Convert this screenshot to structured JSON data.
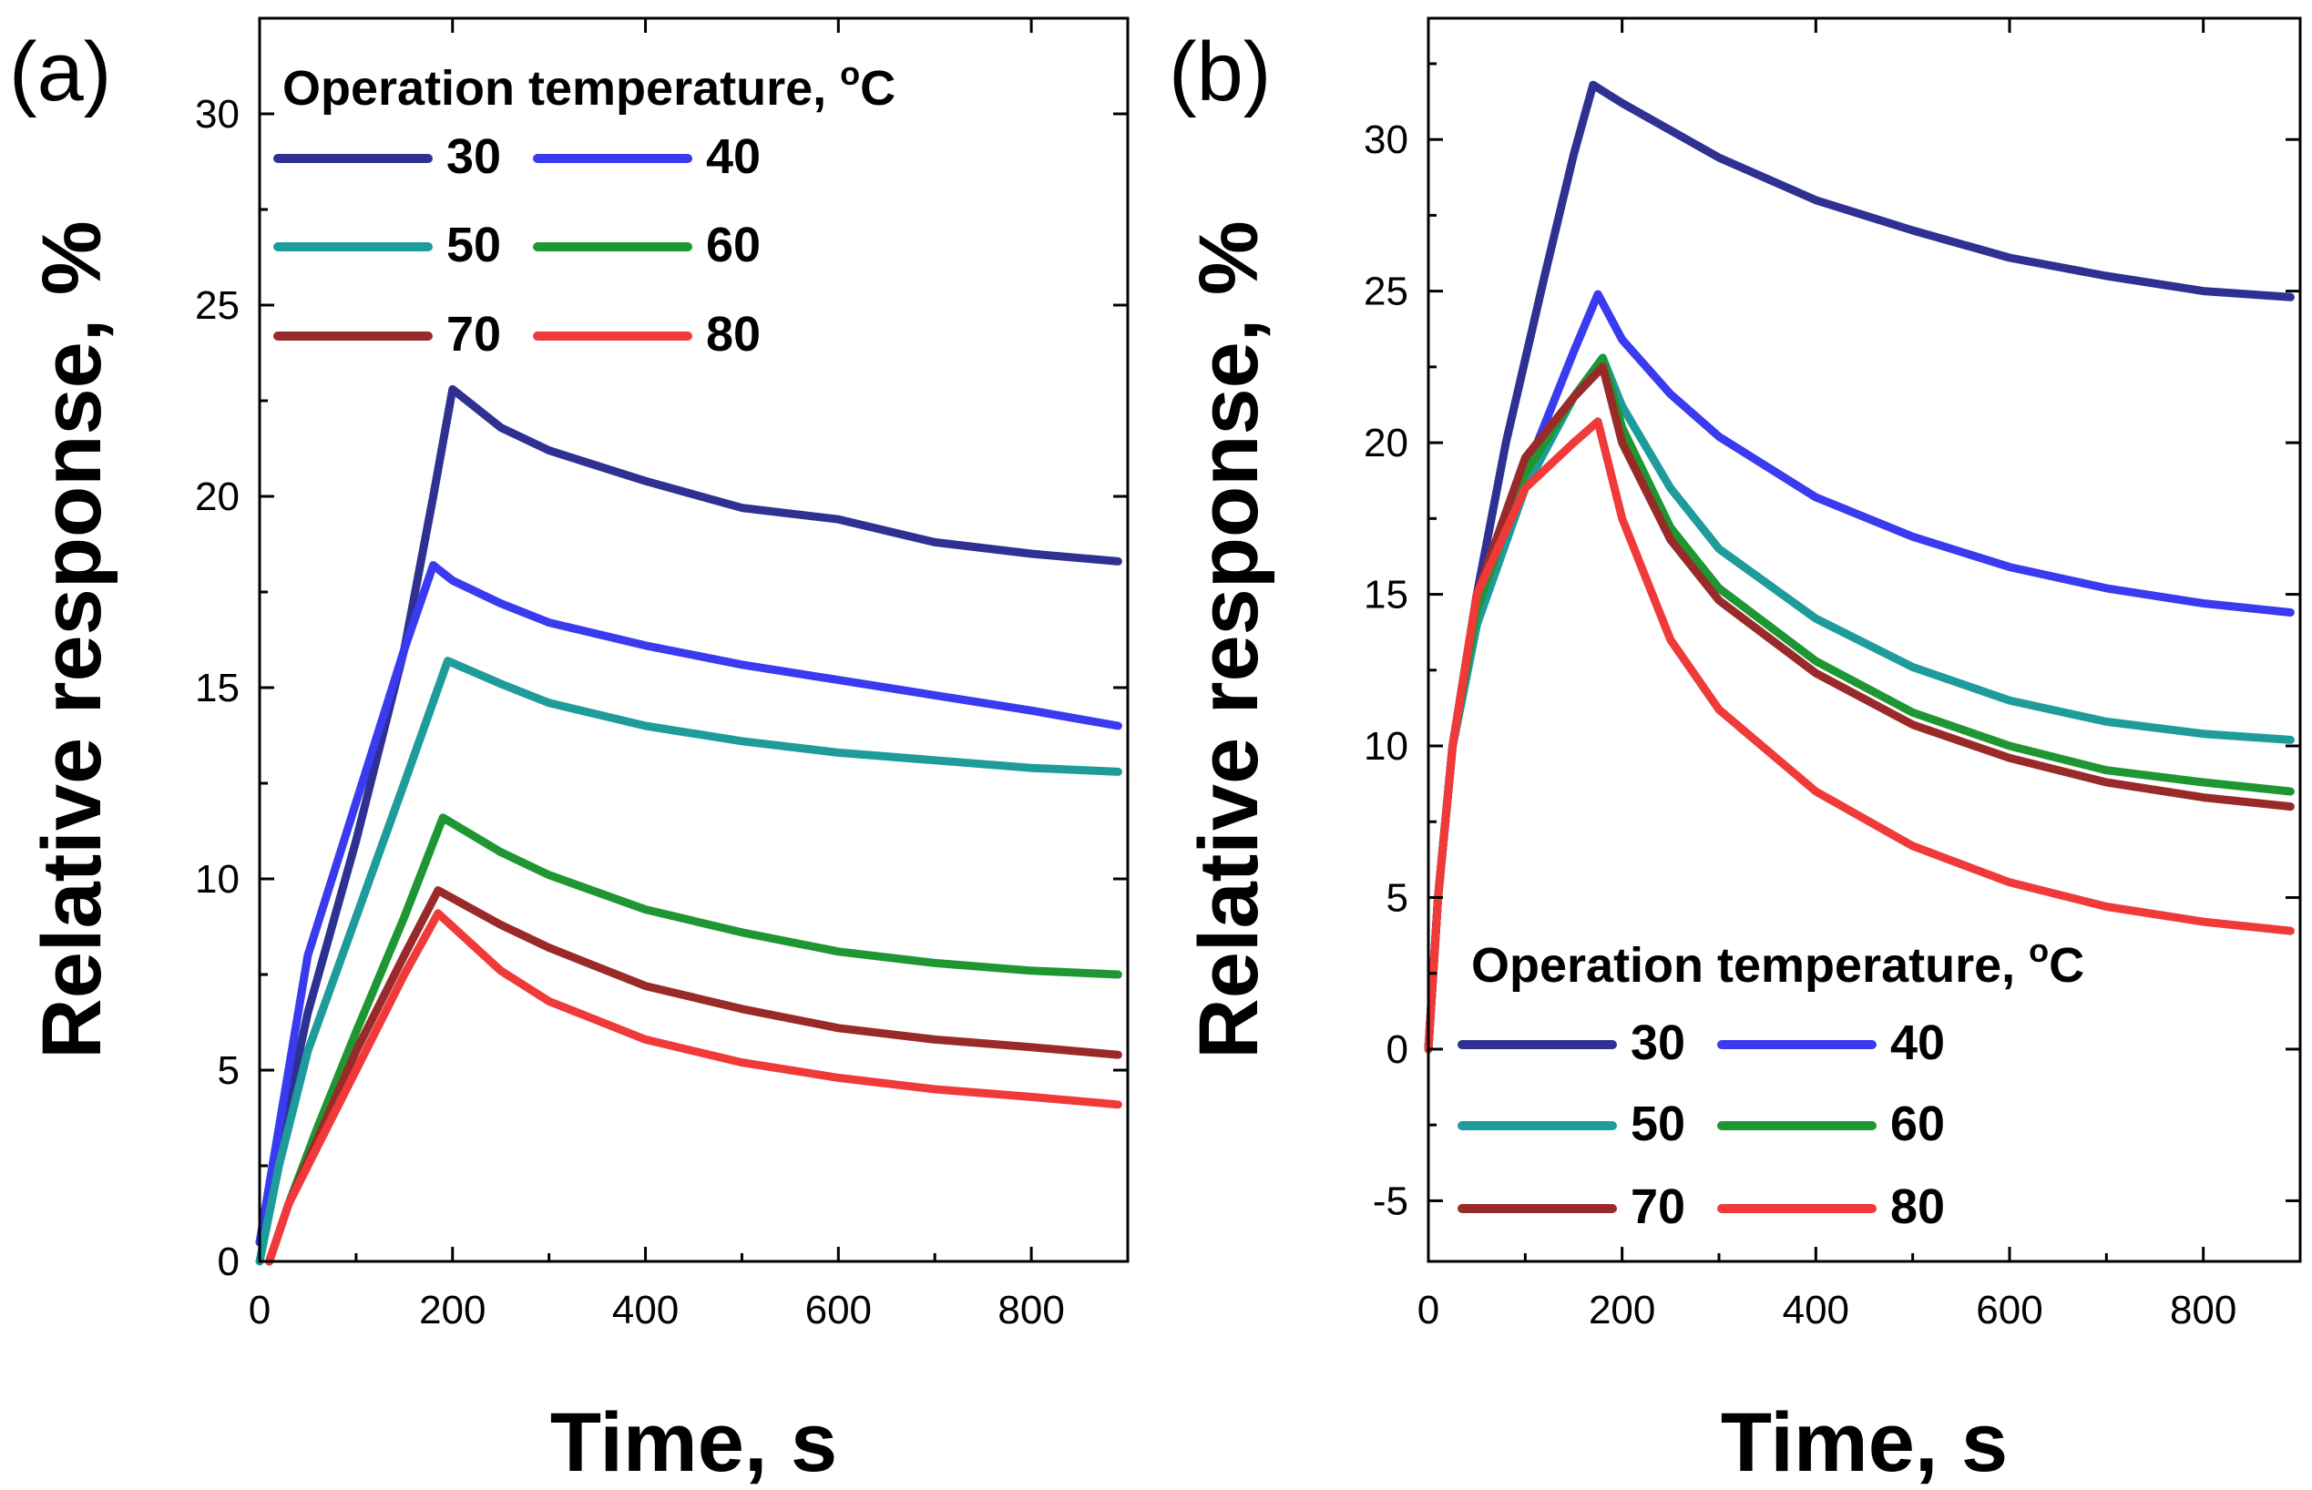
{
  "chart_data": [
    {
      "type": "line",
      "panel_label": "(a)",
      "xlabel": "Time, s",
      "ylabel": "Relative response, %",
      "xlim": [
        0,
        900
      ],
      "ylim": [
        0,
        32.5
      ],
      "xticks": [
        0,
        200,
        400,
        600,
        800
      ],
      "xtick_labels": [
        "0",
        "200",
        "400",
        "600",
        "800"
      ],
      "yticks": [
        0,
        5,
        10,
        15,
        20,
        25,
        30
      ],
      "ytick_labels": [
        "0",
        "5",
        "10",
        "15",
        "20",
        "25",
        "30"
      ],
      "legend": {
        "title": "Operation temperature,",
        "title_unit_super": "o",
        "title_unit": "C",
        "placement": "top-left"
      },
      "series": [
        {
          "name": "30",
          "color": "#2e3192",
          "points": [
            [
              0,
              0.5
            ],
            [
              20,
              3
            ],
            [
              50,
              6.5
            ],
            [
              100,
              11
            ],
            [
              150,
              16
            ],
            [
              180,
              20
            ],
            [
              200,
              22.8
            ],
            [
              250,
              21.8
            ],
            [
              300,
              21.2
            ],
            [
              400,
              20.4
            ],
            [
              500,
              19.7
            ],
            [
              600,
              19.4
            ],
            [
              700,
              18.8
            ],
            [
              800,
              18.5
            ],
            [
              890,
              18.3
            ]
          ]
        },
        {
          "name": "40",
          "color": "#3a3af0",
          "points": [
            [
              0,
              0.5
            ],
            [
              20,
              3.5
            ],
            [
              50,
              8
            ],
            [
              100,
              12
            ],
            [
              150,
              16
            ],
            [
              180,
              18.2
            ],
            [
              200,
              17.8
            ],
            [
              250,
              17.2
            ],
            [
              300,
              16.7
            ],
            [
              400,
              16.1
            ],
            [
              500,
              15.6
            ],
            [
              600,
              15.2
            ],
            [
              700,
              14.8
            ],
            [
              800,
              14.4
            ],
            [
              890,
              14
            ]
          ]
        },
        {
          "name": "50",
          "color": "#1e9b9b",
          "points": [
            [
              0,
              0
            ],
            [
              20,
              2.5
            ],
            [
              50,
              5.5
            ],
            [
              100,
              9
            ],
            [
              150,
              12.5
            ],
            [
              195,
              15.7
            ],
            [
              250,
              15.1
            ],
            [
              300,
              14.6
            ],
            [
              400,
              14
            ],
            [
              500,
              13.6
            ],
            [
              600,
              13.3
            ],
            [
              700,
              13.1
            ],
            [
              800,
              12.9
            ],
            [
              890,
              12.8
            ]
          ]
        },
        {
          "name": "60",
          "color": "#1e9632",
          "points": [
            [
              10,
              0
            ],
            [
              30,
              1.5
            ],
            [
              60,
              3.5
            ],
            [
              100,
              6
            ],
            [
              150,
              9
            ],
            [
              190,
              11.6
            ],
            [
              250,
              10.7
            ],
            [
              300,
              10.1
            ],
            [
              400,
              9.2
            ],
            [
              500,
              8.6
            ],
            [
              600,
              8.1
            ],
            [
              700,
              7.8
            ],
            [
              800,
              7.6
            ],
            [
              890,
              7.5
            ]
          ]
        },
        {
          "name": "70",
          "color": "#9a2a2a",
          "points": [
            [
              10,
              0
            ],
            [
              30,
              1.5
            ],
            [
              60,
              3.2
            ],
            [
              100,
              5.5
            ],
            [
              150,
              8
            ],
            [
              185,
              9.7
            ],
            [
              250,
              8.8
            ],
            [
              300,
              8.2
            ],
            [
              400,
              7.2
            ],
            [
              500,
              6.6
            ],
            [
              600,
              6.1
            ],
            [
              700,
              5.8
            ],
            [
              800,
              5.6
            ],
            [
              890,
              5.4
            ]
          ]
        },
        {
          "name": "80",
          "color": "#f03a3a",
          "points": [
            [
              10,
              0
            ],
            [
              30,
              1.5
            ],
            [
              60,
              3
            ],
            [
              100,
              5
            ],
            [
              150,
              7.5
            ],
            [
              185,
              9.1
            ],
            [
              250,
              7.6
            ],
            [
              300,
              6.8
            ],
            [
              400,
              5.8
            ],
            [
              500,
              5.2
            ],
            [
              600,
              4.8
            ],
            [
              700,
              4.5
            ],
            [
              800,
              4.3
            ],
            [
              890,
              4.1
            ]
          ]
        }
      ]
    },
    {
      "type": "line",
      "panel_label": "(b)",
      "xlabel": "Time, s",
      "ylabel": "Relative response, %",
      "xlim": [
        0,
        900
      ],
      "ylim": [
        -7,
        34
      ],
      "xticks": [
        0,
        200,
        400,
        600,
        800
      ],
      "xtick_labels": [
        "0",
        "200",
        "400",
        "600",
        "800"
      ],
      "yticks": [
        -5,
        0,
        5,
        10,
        15,
        20,
        25,
        30
      ],
      "ytick_labels": [
        "-5",
        "0",
        "5",
        "10",
        "15",
        "20",
        "25",
        "30"
      ],
      "legend": {
        "title": "Operation temperature,",
        "title_unit_super": "o",
        "title_unit": "C",
        "placement": "bottom-right"
      },
      "series": [
        {
          "name": "30",
          "color": "#2e3192",
          "points": [
            [
              0,
              0
            ],
            [
              10,
              5
            ],
            [
              25,
              10
            ],
            [
              50,
              15
            ],
            [
              80,
              20
            ],
            [
              120,
              25.5
            ],
            [
              150,
              29.5
            ],
            [
              170,
              31.8
            ],
            [
              200,
              31.2
            ],
            [
              300,
              29.4
            ],
            [
              400,
              28
            ],
            [
              500,
              27
            ],
            [
              600,
              26.1
            ],
            [
              700,
              25.5
            ],
            [
              800,
              25
            ],
            [
              890,
              24.8
            ]
          ]
        },
        {
          "name": "40",
          "color": "#3a3af0",
          "points": [
            [
              0,
              0
            ],
            [
              10,
              5
            ],
            [
              25,
              10
            ],
            [
              50,
              14
            ],
            [
              100,
              19
            ],
            [
              150,
              23
            ],
            [
              175,
              24.9
            ],
            [
              200,
              23.4
            ],
            [
              250,
              21.6
            ],
            [
              300,
              20.2
            ],
            [
              400,
              18.2
            ],
            [
              500,
              16.9
            ],
            [
              600,
              15.9
            ],
            [
              700,
              15.2
            ],
            [
              800,
              14.7
            ],
            [
              890,
              14.4
            ]
          ]
        },
        {
          "name": "50",
          "color": "#1e9b9b",
          "points": [
            [
              0,
              0
            ],
            [
              10,
              5
            ],
            [
              25,
              10
            ],
            [
              50,
              14
            ],
            [
              100,
              18.5
            ],
            [
              150,
              21.5
            ],
            [
              180,
              22.8
            ],
            [
              200,
              21.2
            ],
            [
              250,
              18.5
            ],
            [
              300,
              16.5
            ],
            [
              400,
              14.2
            ],
            [
              500,
              12.6
            ],
            [
              600,
              11.5
            ],
            [
              700,
              10.8
            ],
            [
              800,
              10.4
            ],
            [
              890,
              10.2
            ]
          ]
        },
        {
          "name": "60",
          "color": "#1e9632",
          "points": [
            [
              0,
              0
            ],
            [
              10,
              5
            ],
            [
              25,
              10
            ],
            [
              50,
              14.5
            ],
            [
              100,
              19
            ],
            [
              150,
              21.5
            ],
            [
              180,
              22.8
            ],
            [
              200,
              20.5
            ],
            [
              250,
              17.2
            ],
            [
              300,
              15.2
            ],
            [
              400,
              12.8
            ],
            [
              500,
              11.1
            ],
            [
              600,
              10
            ],
            [
              700,
              9.2
            ],
            [
              800,
              8.8
            ],
            [
              890,
              8.5
            ]
          ]
        },
        {
          "name": "70",
          "color": "#9a2a2a",
          "points": [
            [
              0,
              0
            ],
            [
              10,
              5
            ],
            [
              25,
              10
            ],
            [
              50,
              15
            ],
            [
              100,
              19.5
            ],
            [
              150,
              21.5
            ],
            [
              180,
              22.5
            ],
            [
              200,
              20
            ],
            [
              250,
              16.8
            ],
            [
              300,
              14.8
            ],
            [
              400,
              12.4
            ],
            [
              500,
              10.7
            ],
            [
              600,
              9.6
            ],
            [
              700,
              8.8
            ],
            [
              800,
              8.3
            ],
            [
              890,
              8
            ]
          ]
        },
        {
          "name": "80",
          "color": "#f03a3a",
          "points": [
            [
              0,
              0
            ],
            [
              10,
              5
            ],
            [
              25,
              10
            ],
            [
              50,
              15
            ],
            [
              100,
              18.5
            ],
            [
              150,
              20
            ],
            [
              175,
              20.7
            ],
            [
              200,
              17.5
            ],
            [
              250,
              13.5
            ],
            [
              300,
              11.2
            ],
            [
              400,
              8.5
            ],
            [
              500,
              6.7
            ],
            [
              600,
              5.5
            ],
            [
              700,
              4.7
            ],
            [
              800,
              4.2
            ],
            [
              890,
              3.9
            ]
          ]
        }
      ]
    }
  ]
}
